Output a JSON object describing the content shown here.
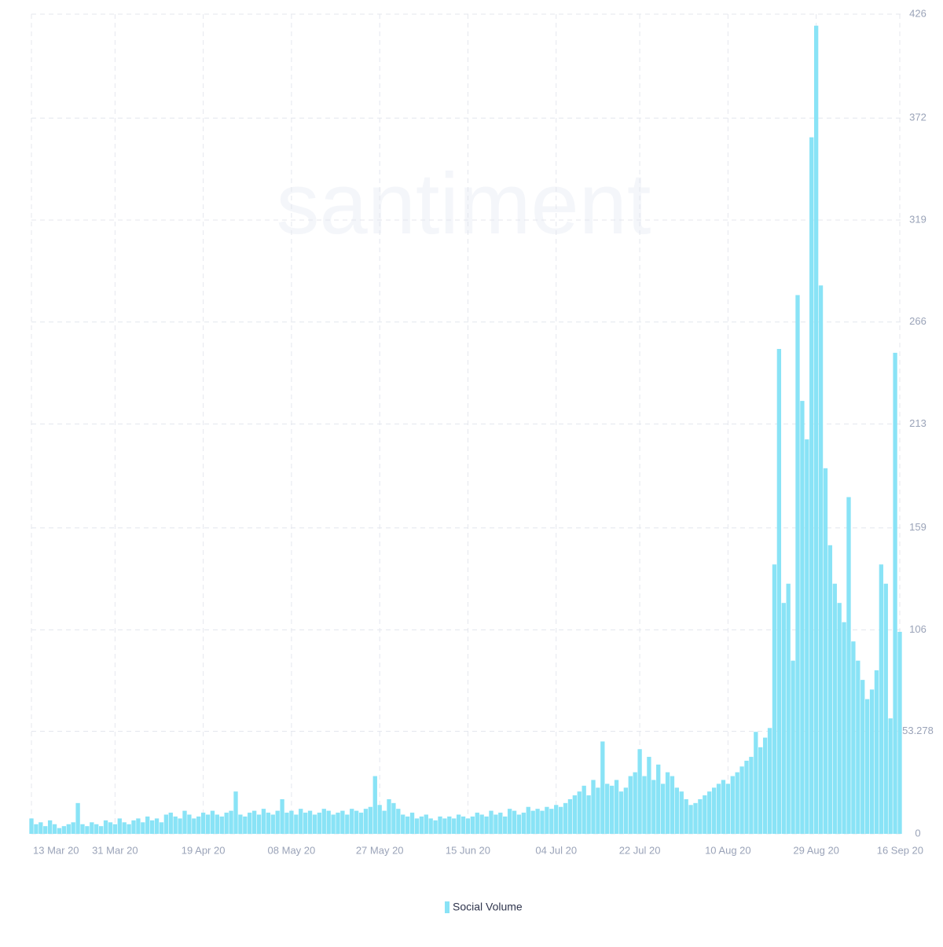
{
  "chart_data": {
    "type": "bar",
    "watermark": "santiment",
    "categories": [
      "13 Mar 20",
      null,
      null,
      null,
      null,
      null,
      null,
      null,
      null,
      null,
      null,
      null,
      null,
      null,
      null,
      null,
      null,
      null,
      "31 Mar 20",
      null,
      null,
      null,
      null,
      null,
      null,
      null,
      null,
      null,
      null,
      null,
      null,
      null,
      null,
      null,
      null,
      null,
      null,
      "19 Apr 20",
      null,
      null,
      null,
      null,
      null,
      null,
      null,
      null,
      null,
      null,
      null,
      null,
      null,
      null,
      null,
      null,
      null,
      null,
      "08 May 20",
      null,
      null,
      null,
      null,
      null,
      null,
      null,
      null,
      null,
      null,
      null,
      null,
      null,
      null,
      null,
      null,
      null,
      null,
      "27 May 20",
      null,
      null,
      null,
      null,
      null,
      null,
      null,
      null,
      null,
      null,
      null,
      null,
      null,
      null,
      null,
      null,
      null,
      null,
      "15 Jun 20",
      null,
      null,
      null,
      null,
      null,
      null,
      null,
      null,
      null,
      null,
      null,
      null,
      null,
      null,
      null,
      null,
      null,
      null,
      "04 Jul 20",
      null,
      null,
      null,
      null,
      null,
      null,
      null,
      null,
      null,
      null,
      null,
      null,
      null,
      null,
      null,
      null,
      null,
      "22 Jul 20",
      null,
      null,
      null,
      null,
      null,
      null,
      null,
      null,
      null,
      null,
      null,
      null,
      null,
      null,
      null,
      null,
      null,
      null,
      "10 Aug 20",
      null,
      null,
      null,
      null,
      null,
      null,
      null,
      null,
      null,
      null,
      null,
      null,
      null,
      null,
      null,
      null,
      null,
      null,
      "29 Aug 20",
      null,
      null,
      null,
      null,
      null,
      null,
      null,
      null,
      null,
      null,
      null,
      null,
      null,
      null,
      null,
      null,
      null,
      "16 Sep 20"
    ],
    "series": [
      {
        "name": "Social Volume",
        "color": "#89e3f6",
        "values": [
          8,
          5,
          6,
          4,
          7,
          5,
          3,
          4,
          5,
          6,
          16,
          5,
          4,
          6,
          5,
          4,
          7,
          6,
          5,
          8,
          6,
          5,
          7,
          8,
          6,
          9,
          7,
          8,
          6,
          10,
          11,
          9,
          8,
          12,
          10,
          8,
          9,
          11,
          10,
          12,
          10,
          9,
          11,
          12,
          22,
          10,
          9,
          11,
          12,
          10,
          13,
          11,
          10,
          12,
          18,
          11,
          12,
          10,
          13,
          11,
          12,
          10,
          11,
          13,
          12,
          10,
          11,
          12,
          10,
          13,
          12,
          11,
          13,
          14,
          30,
          15,
          12,
          18,
          16,
          13,
          10,
          9,
          11,
          8,
          9,
          10,
          8,
          7,
          9,
          8,
          9,
          8,
          10,
          9,
          8,
          9,
          11,
          10,
          9,
          12,
          10,
          11,
          9,
          13,
          12,
          10,
          11,
          14,
          12,
          13,
          12,
          14,
          13,
          15,
          14,
          16,
          18,
          20,
          22,
          25,
          20,
          28,
          24,
          48,
          26,
          25,
          28,
          22,
          24,
          30,
          32,
          44,
          30,
          40,
          28,
          36,
          26,
          32,
          30,
          24,
          22,
          18,
          15,
          16,
          18,
          20,
          22,
          24,
          26,
          28,
          26,
          30,
          32,
          35,
          38,
          40,
          53,
          45,
          50,
          55,
          140,
          252,
          120,
          130,
          90,
          280,
          225,
          205,
          362,
          420,
          285,
          190,
          150,
          130,
          120,
          110,
          175,
          100,
          90,
          80,
          70,
          75,
          85,
          140,
          130,
          60,
          250,
          105
        ]
      }
    ],
    "ylim": [
      0,
      426
    ],
    "yticks": [
      0,
      53.278,
      106,
      159,
      213,
      266,
      319,
      372,
      426
    ],
    "grid": true
  }
}
